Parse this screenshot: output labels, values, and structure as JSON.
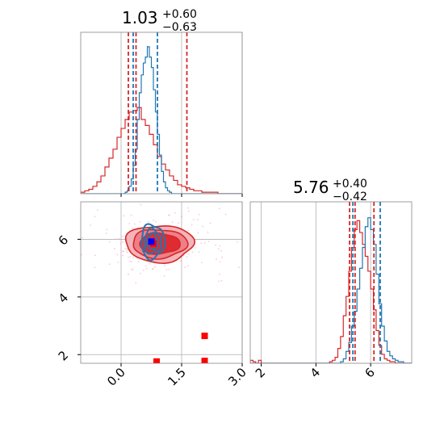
{
  "chart_data": {
    "type": "corner",
    "parameters": [
      {
        "title_value": "1.03",
        "title_plus": "+0.60",
        "title_minus": "−0.63"
      },
      {
        "title_value": "5.76",
        "title_plus": "+0.40",
        "title_minus": "−0.42"
      }
    ],
    "x_range": [
      -1.0,
      3.0
    ],
    "y_range": [
      1.7,
      7.3
    ],
    "p1_x_ticks": [
      "0.0",
      "1.5",
      "3.0"
    ],
    "p1_y_ticks": [
      "2",
      "4",
      "6"
    ],
    "p2_x_range": [
      1.6,
      7.5
    ],
    "p2_x_ticks": [
      "2",
      "4",
      "6"
    ],
    "grid": true,
    "colors": {
      "blue": "#1f77b4",
      "red": "#d62728",
      "marker_blue": "#0000ff",
      "marker_red": "#ff0000"
    },
    "hist1_blue_quantiles": [
      0.3,
      0.9
    ],
    "hist1_red_quantiles": [
      0.18,
      0.37,
      1.63
    ],
    "hist2_blue_quantiles": [
      5.35,
      6.35
    ],
    "hist2_red_quantiles": [
      5.23,
      5.43,
      6.12
    ],
    "hist1_blue": {
      "x0": -1.0,
      "bin": 0.05,
      "max": 1.0,
      "values": [
        0,
        0,
        0,
        0,
        0,
        0,
        0,
        0,
        0,
        0,
        0,
        0,
        0,
        0,
        0,
        0,
        0,
        0,
        0,
        0,
        0,
        0,
        0.01,
        0.02,
        0.05,
        0.1,
        0.19,
        0.3,
        0.5,
        0.68,
        0.8,
        0.88,
        0.92,
        0.99,
        0.92,
        0.85,
        0.7,
        0.55,
        0.4,
        0.26,
        0.15,
        0.08,
        0.04,
        0.02,
        0.01,
        0,
        0,
        0,
        0,
        0,
        0,
        0,
        0,
        0,
        0,
        0,
        0,
        0,
        0,
        0,
        0,
        0,
        0,
        0,
        0,
        0,
        0,
        0,
        0,
        0,
        0,
        0,
        0,
        0,
        0,
        0,
        0,
        0,
        0,
        0
      ]
    },
    "hist1_red": {
      "x0": -1.0,
      "bin": 0.1,
      "max": 1.0,
      "values": [
        0.01,
        0.02,
        0.03,
        0.05,
        0.08,
        0.12,
        0.18,
        0.24,
        0.3,
        0.38,
        0.44,
        0.5,
        0.55,
        0.56,
        0.58,
        0.5,
        0.46,
        0.4,
        0.33,
        0.25,
        0.2,
        0.16,
        0.12,
        0.09,
        0.06,
        0.05,
        0.04,
        0.03,
        0.02,
        0.02,
        0.01,
        0.01,
        0.01,
        0.01,
        0,
        0,
        0,
        0,
        0,
        0
      ]
    },
    "hist2_blue": {
      "x0": 1.6,
      "bin": 0.1,
      "max": 1.0,
      "values": [
        0,
        0,
        0,
        0,
        0,
        0,
        0,
        0,
        0,
        0,
        0,
        0,
        0,
        0,
        0,
        0,
        0,
        0,
        0,
        0,
        0,
        0,
        0,
        0,
        0,
        0,
        0,
        0,
        0,
        0,
        0,
        0,
        0,
        0.01,
        0.03,
        0.08,
        0.14,
        0.25,
        0.35,
        0.5,
        0.64,
        0.78,
        0.92,
        0.98,
        0.9,
        0.8,
        0.6,
        0.4,
        0.25,
        0.15,
        0.08,
        0.05,
        0.03,
        0.02,
        0.01,
        0.01,
        0,
        0,
        0
      ]
    },
    "hist2_red": {
      "x0": 1.6,
      "bin": 0.1,
      "max": 1.0,
      "values": [
        0.02,
        0.01,
        0,
        0.02,
        0,
        0,
        0,
        0,
        0,
        0,
        0,
        0,
        0,
        0,
        0,
        0,
        0,
        0,
        0,
        0,
        0,
        0,
        0,
        0,
        0,
        0,
        0,
        0,
        0,
        0.01,
        0.02,
        0.04,
        0.1,
        0.18,
        0.32,
        0.45,
        0.62,
        0.78,
        0.9,
        0.96,
        0.88,
        0.8,
        0.72,
        0.62,
        0.5,
        0.36,
        0.22,
        0.12,
        0.06,
        0.03,
        0.02,
        0.01,
        0.01,
        0,
        0,
        0,
        0,
        0,
        0
      ]
    },
    "red_levels": [
      {
        "cx": 0.95,
        "cy": 5.85,
        "rx": 1.68,
        "ry": 1.28,
        "opacity": 0.55
      },
      {
        "cx": 0.95,
        "cy": 5.85,
        "rx": 1.35,
        "ry": 1.0,
        "opacity": 0.75
      },
      {
        "cx": 0.95,
        "cy": 5.85,
        "rx": 1.0,
        "ry": 0.72,
        "opacity": 1.0
      }
    ],
    "blue_levels": [
      {
        "cx": 0.78,
        "cy": 5.92,
        "rx": 0.58,
        "ry": 1.18
      },
      {
        "cx": 0.78,
        "cy": 5.92,
        "rx": 0.42,
        "ry": 0.85
      },
      {
        "cx": 0.78,
        "cy": 5.92,
        "rx": 0.26,
        "ry": 0.55
      }
    ],
    "markers_red": [
      {
        "x": 0.8,
        "y": 5.85
      },
      {
        "x": 2.07,
        "y": 2.65
      },
      {
        "x": 2.07,
        "y": 1.78
      },
      {
        "x": 0.88,
        "y": 1.76
      }
    ],
    "markers_blue": [
      {
        "x": 0.75,
        "y": 5.92
      }
    ]
  }
}
